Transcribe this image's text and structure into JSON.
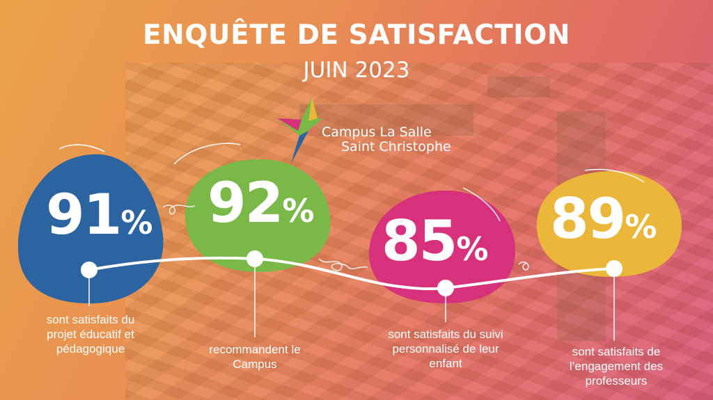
{
  "header": {
    "title": "ENQUÊTE DE SATISFACTION",
    "subtitle": "JUIN 2023"
  },
  "logo": {
    "line1": "Campus La Salle",
    "line2": "Saint Christophe"
  },
  "stats": [
    {
      "number": "91",
      "percent_sign": "%",
      "caption_lines": [
        "sont satisfaits du",
        "projet éducatif et",
        "pédagogique"
      ],
      "color": "#2b64a0"
    },
    {
      "number": "92",
      "percent_sign": "%",
      "caption_lines": [
        "recommandent le",
        "Campus"
      ],
      "color": "#7ab848"
    },
    {
      "number": "85",
      "percent_sign": "%",
      "caption_lines": [
        "sont satisfaits du suivi",
        "personnalisé de leur",
        "enfant"
      ],
      "color": "#d8317c"
    },
    {
      "number": "89",
      "percent_sign": "%",
      "caption_lines": [
        "sont satisfaits de",
        "l’engagement des",
        "professeurs"
      ],
      "color": "#eab73a"
    }
  ]
}
